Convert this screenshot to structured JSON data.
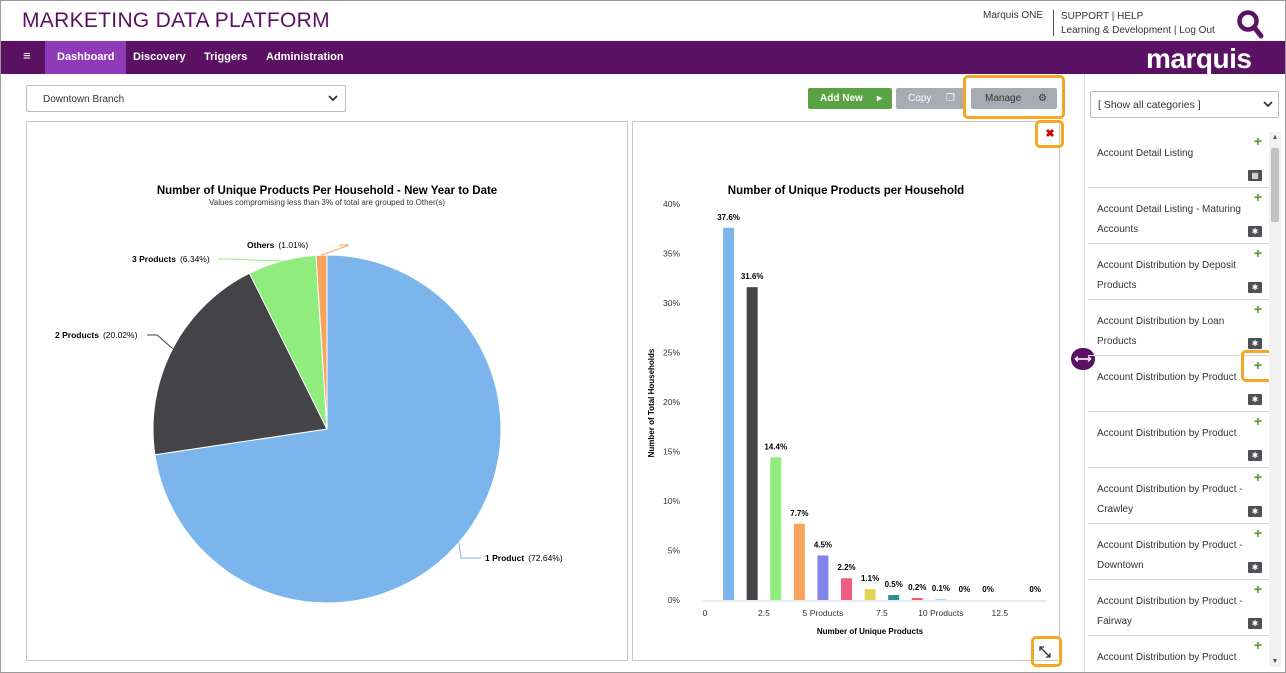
{
  "header": {
    "app_title": "MARKETING DATA PLATFORM",
    "user": "Marquis ONE",
    "link_support": "SUPPORT | HELP",
    "link_learning": "Learning & Development | Log Out",
    "search_icon": "magnifier-icon"
  },
  "nav": {
    "menu_icon": "hamburger-icon",
    "items": [
      "Dashboard",
      "Discovery",
      "Triggers",
      "Administration"
    ],
    "active": "Dashboard",
    "brand": "marquis"
  },
  "toolbar": {
    "branch_select": "Downtown Branch",
    "add_new": "Add New",
    "copy": "Copy",
    "manage": "Manage"
  },
  "sidebar": {
    "category_select": "[ Show all categories ]",
    "items": [
      {
        "label": "Account Detail Listing",
        "icon": "table-icon"
      },
      {
        "label": "Account Detail Listing - Maturing Accounts",
        "icon": "gear-icon"
      },
      {
        "label": "Account Distribution by Deposit Products",
        "icon": "gear-icon"
      },
      {
        "label": "Account Distribution by Loan Products",
        "icon": "gear-icon"
      },
      {
        "label": "Account Distribution by Product",
        "icon": "gear-icon"
      },
      {
        "label": "Account Distribution by Product",
        "icon": "gear-icon"
      },
      {
        "label": "Account Distribution by Product - Crawley",
        "icon": "gear-icon"
      },
      {
        "label": "Account Distribution by Product - Downtown",
        "icon": "gear-icon"
      },
      {
        "label": "Account Distribution by Product - Fairway",
        "icon": "gear-icon"
      },
      {
        "label": "Account Distribution by Product",
        "icon": "gear-icon"
      }
    ]
  },
  "colors": {
    "brand_purple": "#5b1163",
    "nav_active": "#8f3ab8",
    "add_green": "#5aa344",
    "highlight": "#f5a623"
  },
  "chart_data": [
    {
      "type": "pie",
      "title": "Number of Unique Products Per Household - New Year to Date",
      "subtitle": "Values compromising less than 3% of total are grouped to Other(s)",
      "slices": [
        {
          "label": "1 Product",
          "value": 72.64,
          "display": "(72.64%)",
          "color": "#7cb5ec"
        },
        {
          "label": "2 Products",
          "value": 20.02,
          "display": "(20.02%)",
          "color": "#434348"
        },
        {
          "label": "3 Products",
          "value": 6.34,
          "display": "(6.34%)",
          "color": "#90ed7d"
        },
        {
          "label": "Others",
          "value": 1.01,
          "display": "(1.01%)",
          "color": "#f7a35c"
        }
      ]
    },
    {
      "type": "bar",
      "title": "Number of Unique Products per Household",
      "xlabel": "Number of Unique Products",
      "ylabel": "Number of Total Households",
      "x": [
        1,
        2,
        3,
        4,
        5,
        6,
        7,
        8,
        9,
        10,
        11,
        12,
        14
      ],
      "values": [
        37.6,
        31.6,
        14.4,
        7.7,
        4.5,
        2.2,
        1.1,
        0.5,
        0.2,
        0.1,
        0,
        0,
        0
      ],
      "data_labels": [
        "37.6%",
        "31.6%",
        "14.4%",
        "7.7%",
        "4.5%",
        "2.2%",
        "1.1%",
        "0.5%",
        "0.2%",
        "0.1%",
        "0%",
        "0%",
        "0%"
      ],
      "colors": [
        "#7cb5ec",
        "#434348",
        "#90ed7d",
        "#f7a35c",
        "#8085e9",
        "#f15c80",
        "#e4d354",
        "#2b908f",
        "#f45b5b",
        "#91e8e1",
        "#7cb5ec",
        "#434348",
        "#90ed7d"
      ],
      "xlim": [
        0,
        14.5
      ],
      "x_ticks": [
        {
          "v": 0,
          "label": "0"
        },
        {
          "v": 2.5,
          "label": "2.5"
        },
        {
          "v": 5,
          "label": "5 Products"
        },
        {
          "v": 7.5,
          "label": "7.5"
        },
        {
          "v": 10,
          "label": "10 Products"
        },
        {
          "v": 12.5,
          "label": "12.5"
        }
      ],
      "ylim": [
        0,
        40
      ],
      "y_ticks": [
        "0%",
        "5%",
        "10%",
        "15%",
        "20%",
        "25%",
        "30%",
        "35%",
        "40%"
      ]
    }
  ]
}
